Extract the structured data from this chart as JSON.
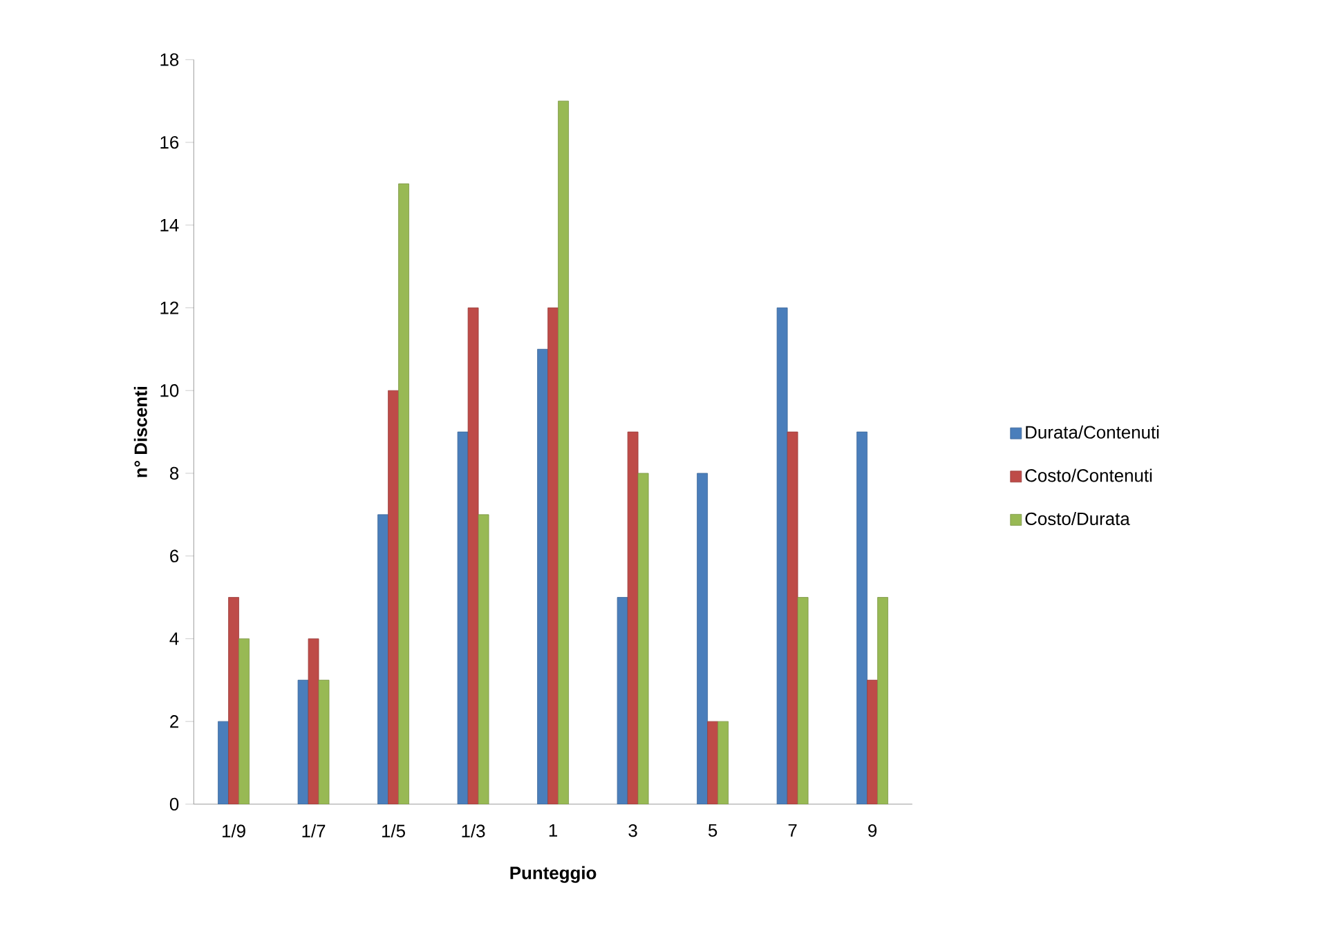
{
  "chart_data": {
    "type": "bar",
    "xlabel": "Punteggio",
    "ylabel": "n° Discenti",
    "categories": [
      "1/9",
      "1/7",
      "1/5",
      "1/3",
      "1",
      "3",
      "5",
      "7",
      "9"
    ],
    "series": [
      {
        "name": "Durata/Contenuti",
        "color": "#4a7ebb",
        "values": [
          2,
          3,
          7,
          9,
          11,
          5,
          8,
          12,
          9
        ]
      },
      {
        "name": "Costo/Contenuti",
        "color": "#be4b48",
        "values": [
          5,
          4,
          10,
          12,
          12,
          9,
          2,
          9,
          3
        ]
      },
      {
        "name": "Costo/Durata",
        "color": "#98b954",
        "values": [
          4,
          3,
          15,
          7,
          17,
          8,
          2,
          5,
          5
        ]
      }
    ],
    "ylim": [
      0,
      18
    ],
    "yticks": [
      0,
      2,
      4,
      6,
      8,
      10,
      12,
      14,
      16,
      18
    ],
    "legend": "right"
  }
}
